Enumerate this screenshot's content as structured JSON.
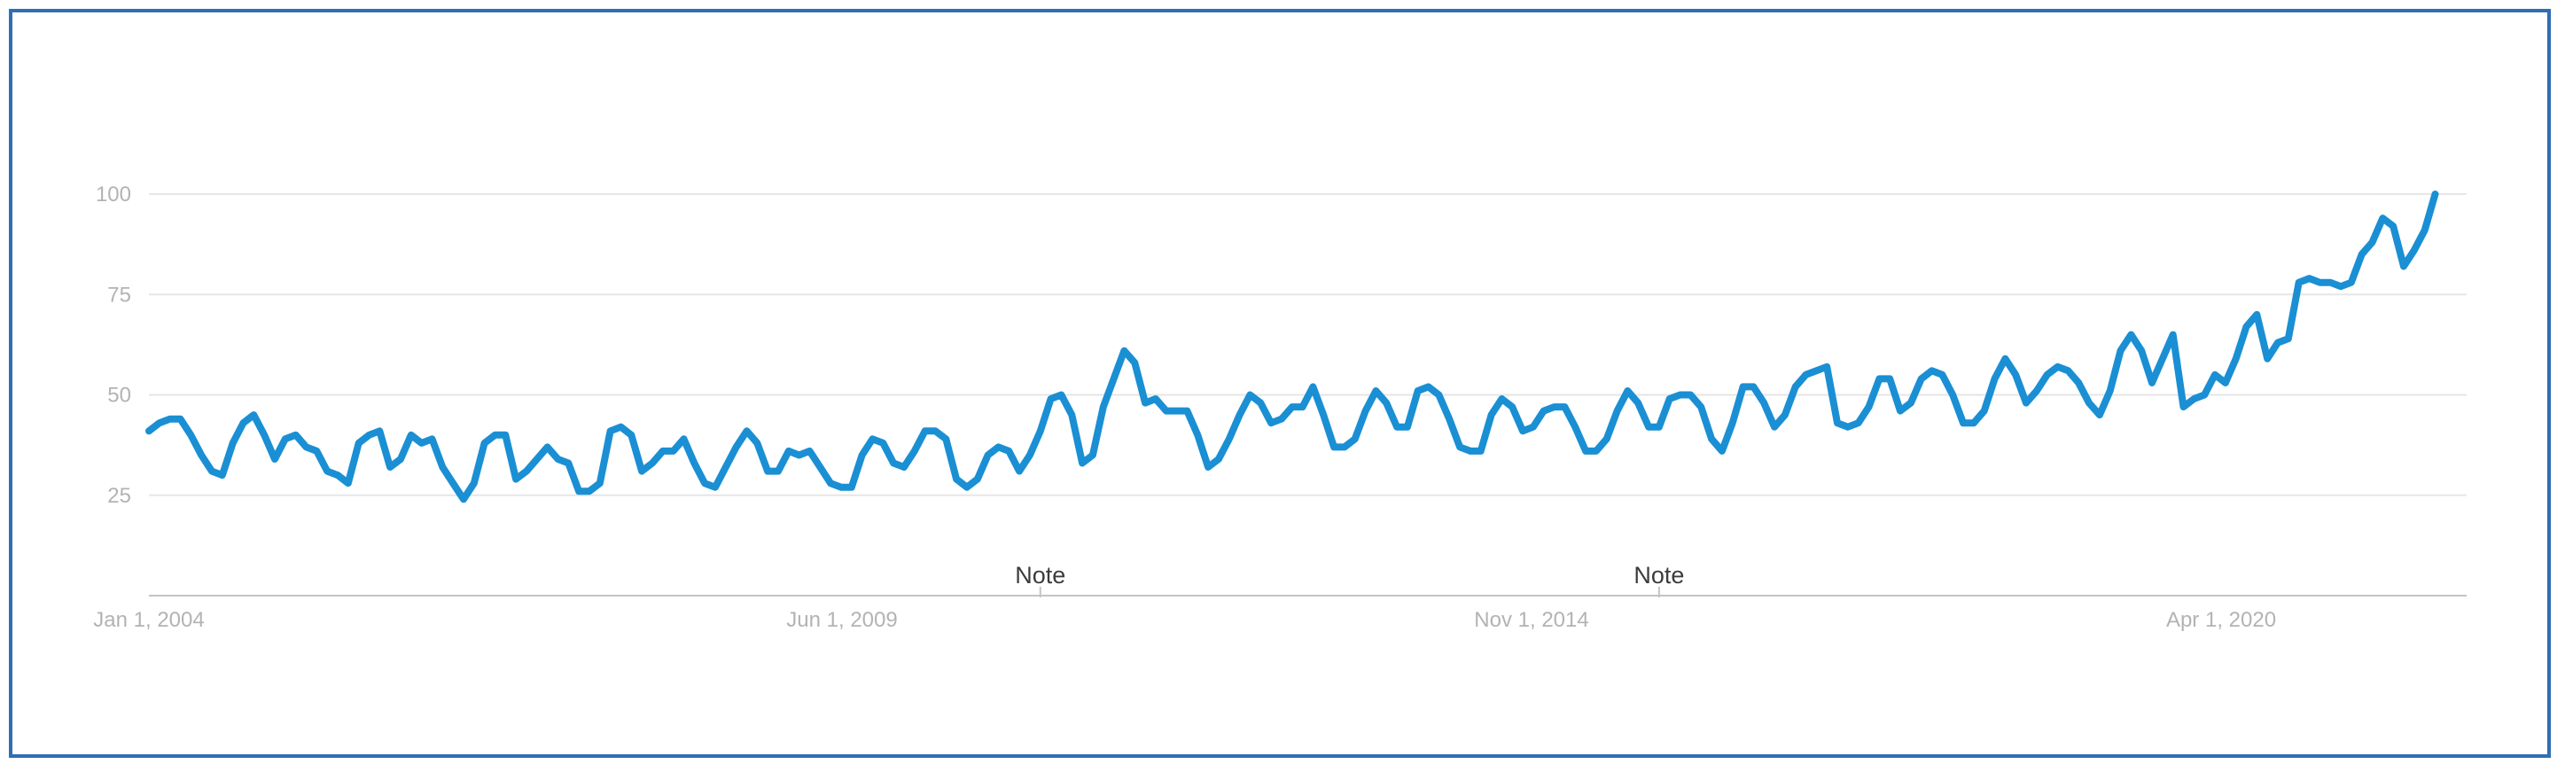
{
  "chart_data": {
    "type": "line",
    "title": "",
    "xlabel": "",
    "ylabel": "",
    "x_ticks": [
      "Jan 1, 2004",
      "Jun 1, 2009",
      "Nov 1, 2014",
      "Apr 1, 2020"
    ],
    "y_ticks": [
      25,
      50,
      75,
      100
    ],
    "xlim": [
      "2004-01",
      "2022-06"
    ],
    "ylim": [
      0,
      100
    ],
    "grid": true,
    "legend": "none",
    "annotations": [
      {
        "label": "Note",
        "x": "2011-02"
      },
      {
        "label": "Note",
        "x": "2016-01"
      }
    ],
    "colors": {
      "series": "#1a8fd4",
      "frame": "#2f6eb5"
    },
    "series": [
      {
        "start": "2004-01",
        "frequency": "monthly",
        "values": [
          41,
          43,
          44,
          44,
          40,
          35,
          31,
          30,
          38,
          43,
          45,
          40,
          34,
          39,
          40,
          37,
          36,
          31,
          30,
          28,
          38,
          40,
          41,
          32,
          34,
          40,
          38,
          39,
          32,
          28,
          24,
          28,
          38,
          40,
          40,
          29,
          31,
          34,
          37,
          34,
          33,
          26,
          26,
          28,
          41,
          42,
          40,
          31,
          33,
          36,
          36,
          39,
          33,
          28,
          27,
          32,
          37,
          41,
          38,
          31,
          31,
          36,
          35,
          36,
          32,
          28,
          27,
          27,
          35,
          39,
          38,
          33,
          32,
          36,
          41,
          41,
          39,
          29,
          27,
          29,
          35,
          37,
          36,
          31,
          35,
          41,
          49,
          50,
          45,
          33,
          35,
          47,
          54,
          61,
          58,
          48,
          49,
          46,
          46,
          46,
          40,
          32,
          34,
          39,
          45,
          50,
          48,
          43,
          44,
          47,
          47,
          52,
          45,
          37,
          37,
          39,
          46,
          51,
          48,
          42,
          42,
          51,
          52,
          50,
          44,
          37,
          36,
          36,
          45,
          49,
          47,
          41,
          42,
          46,
          47,
          47,
          42,
          36,
          36,
          39,
          46,
          51,
          48,
          42,
          42,
          49,
          50,
          50,
          47,
          39,
          36,
          43,
          52,
          52,
          48,
          42,
          45,
          52,
          55,
          56,
          57,
          43,
          42,
          43,
          47,
          54,
          54,
          46,
          48,
          54,
          56,
          55,
          50,
          43,
          43,
          46,
          54,
          59,
          55,
          48,
          51,
          55,
          57,
          56,
          53,
          48,
          45,
          51,
          61,
          65,
          61,
          53,
          59,
          65,
          47,
          49,
          50,
          55,
          53,
          59,
          67,
          70,
          59,
          63,
          64,
          78,
          79,
          78,
          78,
          77,
          78,
          85,
          88,
          94,
          92,
          82,
          86,
          91,
          100
        ]
      }
    ]
  }
}
